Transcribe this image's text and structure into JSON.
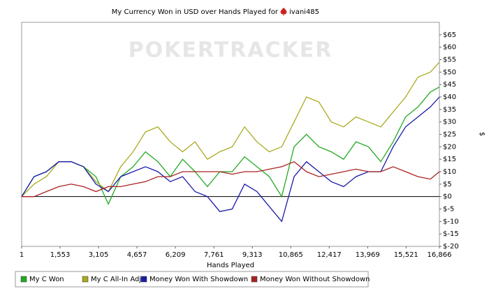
{
  "chart_data": {
    "type": "line",
    "title": "My Currency Won in USD over Hands Played for",
    "player": "ivani485",
    "watermark": "POKERTRACKER",
    "x_label": "Hands Played",
    "y_label": "$",
    "xlim": [
      1,
      16866
    ],
    "xticks": [
      1,
      {
        "value": 1553,
        "label": "1,553"
      },
      {
        "value": 3105,
        "label": "3,105"
      },
      {
        "value": 4657,
        "label": "4,657"
      },
      {
        "value": 6209,
        "label": "6,209"
      },
      {
        "value": 7761,
        "label": "7,761"
      },
      {
        "value": 9313,
        "label": "9,313"
      },
      {
        "value": 10865,
        "label": "10,865"
      },
      {
        "value": 12417,
        "label": "12,417"
      },
      {
        "value": 13969,
        "label": "13,969"
      },
      {
        "value": 15521,
        "label": "15,521"
      },
      {
        "value": 16866,
        "label": "16,866"
      }
    ],
    "ylim": [
      -20,
      70
    ],
    "yticks": [
      {
        "value": -20,
        "label": "$-20"
      },
      {
        "value": -15,
        "label": "$-15"
      },
      {
        "value": -10,
        "label": "$-10"
      },
      {
        "value": -5,
        "label": "$-5"
      },
      {
        "value": 0,
        "label": "$0"
      },
      {
        "value": 5,
        "label": "$5"
      },
      {
        "value": 10,
        "label": "$10"
      },
      {
        "value": 15,
        "label": "$15"
      },
      {
        "value": 20,
        "label": "$20"
      },
      {
        "value": 25,
        "label": "$25"
      },
      {
        "value": 30,
        "label": "$30"
      },
      {
        "value": 35,
        "label": "$35"
      },
      {
        "value": 40,
        "label": "$40"
      },
      {
        "value": 45,
        "label": "$45"
      },
      {
        "value": 50,
        "label": "$50"
      },
      {
        "value": 55,
        "label": "$55"
      },
      {
        "value": 60,
        "label": "$60"
      },
      {
        "value": 65,
        "label": "$65"
      }
    ],
    "grid": false,
    "legend": "bottom",
    "x": [
      1,
      500,
      1000,
      1500,
      2000,
      2500,
      3000,
      3500,
      4000,
      4500,
      5000,
      5500,
      6000,
      6500,
      7000,
      7500,
      8000,
      8500,
      9000,
      9500,
      10000,
      10500,
      11000,
      11500,
      12000,
      12500,
      13000,
      13500,
      14000,
      14500,
      15000,
      15500,
      16000,
      16500,
      16866
    ],
    "series": [
      {
        "name": "My C Won",
        "color": "#22aa22",
        "values": [
          0,
          8,
          10,
          14,
          14,
          12,
          8,
          -3,
          8,
          12,
          18,
          14,
          8,
          15,
          10,
          4,
          10,
          10,
          16,
          12,
          8,
          0,
          20,
          25,
          20,
          18,
          15,
          22,
          20,
          14,
          22,
          32,
          36,
          42,
          44
        ]
      },
      {
        "name": "My C All-In Adj",
        "color": "#aaaa22",
        "values": [
          0,
          5,
          8,
          14,
          14,
          12,
          6,
          2,
          12,
          18,
          26,
          28,
          22,
          18,
          22,
          15,
          18,
          20,
          28,
          22,
          18,
          20,
          30,
          40,
          38,
          30,
          28,
          32,
          30,
          28,
          34,
          40,
          48,
          50,
          54
        ]
      },
      {
        "name": "Money Won With Showdown",
        "color": "#1a1aaa",
        "values": [
          0,
          8,
          10,
          14,
          14,
          12,
          5,
          2,
          8,
          10,
          12,
          10,
          6,
          8,
          2,
          0,
          -6,
          -5,
          5,
          2,
          -4,
          -10,
          8,
          14,
          10,
          6,
          4,
          8,
          10,
          10,
          20,
          28,
          32,
          36,
          40
        ]
      },
      {
        "name": "Money Won Without Showdown",
        "color": "#aa2222",
        "values": [
          0,
          0,
          2,
          4,
          5,
          4,
          2,
          4,
          4,
          5,
          6,
          8,
          8,
          10,
          10,
          10,
          10,
          9,
          10,
          10,
          11,
          12,
          14,
          10,
          8,
          9,
          10,
          11,
          10,
          10,
          12,
          10,
          8,
          7,
          10
        ]
      }
    ]
  }
}
